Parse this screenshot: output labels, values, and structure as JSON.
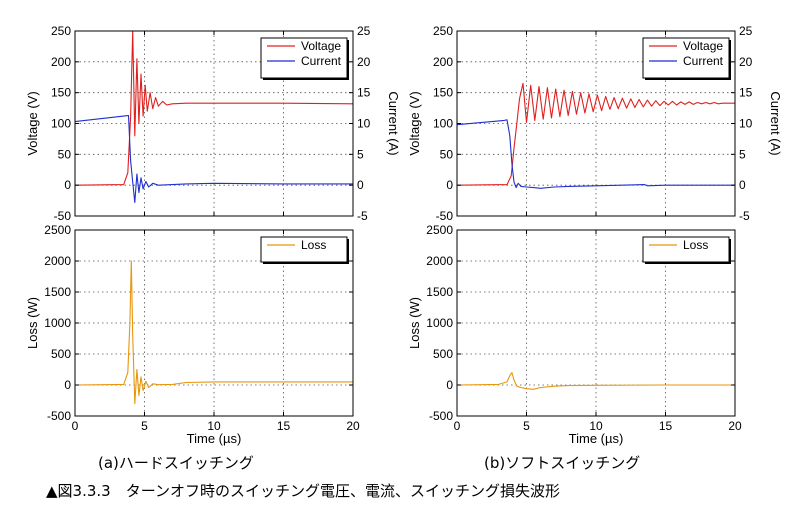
{
  "figure": {
    "caption": "▲図3.3.3　ターンオフ時のスイッチング電圧、電流、スイッチング損失波形",
    "labels": [
      "(a)ハードスイッチング",
      "(b)ソフトスイッチング"
    ]
  },
  "chart_data": [
    {
      "id": "hard-vi",
      "type": "line",
      "xlabel": "",
      "ylabel": "Voltage (V)",
      "ylabel_right": "Current (A)",
      "xlim": [
        0,
        20
      ],
      "ylim": [
        -50,
        250
      ],
      "ylim_right": [
        -5,
        25
      ],
      "yticks": [
        -50,
        0,
        50,
        100,
        150,
        200,
        250
      ],
      "yticks_right": [
        -5,
        0,
        5,
        10,
        15,
        20,
        25
      ],
      "grid": true,
      "legend": "top-right",
      "series": [
        {
          "name": "Voltage",
          "color": "#e0201e",
          "axis": "left",
          "x": [
            0,
            3.5,
            3.8,
            4.0,
            4.15,
            4.3,
            4.45,
            4.6,
            4.75,
            4.9,
            5.05,
            5.2,
            5.4,
            5.6,
            5.8,
            6.0,
            6.3,
            6.6,
            7,
            8,
            10,
            15,
            20
          ],
          "y": [
            0,
            1,
            20,
            110,
            250,
            80,
            205,
            100,
            180,
            112,
            162,
            120,
            150,
            124,
            142,
            128,
            136,
            130,
            132,
            133,
            133,
            133,
            132
          ]
        },
        {
          "name": "Current",
          "color": "#1f2fd0",
          "axis": "right",
          "x": [
            0,
            3.5,
            3.85,
            4.0,
            4.15,
            4.3,
            4.45,
            4.6,
            4.75,
            4.9,
            5.1,
            5.3,
            5.6,
            6,
            7,
            8,
            10,
            15,
            20
          ],
          "y": [
            10.3,
            11.2,
            11.3,
            4,
            0.5,
            -2.8,
            1.8,
            -1.2,
            1.2,
            -0.6,
            0.6,
            -0.3,
            0.3,
            0,
            0.1,
            0.2,
            0.3,
            0.2,
            0.2
          ]
        }
      ]
    },
    {
      "id": "soft-vi",
      "type": "line",
      "xlabel": "",
      "ylabel": "Voltage (V)",
      "ylabel_right": "Current (A)",
      "xlim": [
        0,
        20
      ],
      "ylim": [
        -50,
        250
      ],
      "ylim_right": [
        -5,
        25
      ],
      "yticks": [
        -50,
        0,
        50,
        100,
        150,
        200,
        250
      ],
      "yticks_right": [
        -5,
        0,
        5,
        10,
        15,
        20,
        25
      ],
      "grid": true,
      "legend": "top-right",
      "series": [
        {
          "name": "Voltage",
          "color": "#e0201e",
          "axis": "left",
          "x": [
            0,
            3.6,
            3.9,
            4.1,
            4.3,
            4.5,
            4.75,
            5.0,
            5.3,
            5.6,
            5.9,
            6.2,
            6.5,
            6.8,
            7.1,
            7.4,
            7.7,
            8.0,
            8.3,
            8.6,
            8.9,
            9.2,
            9.5,
            9.8,
            10.1,
            10.4,
            10.7,
            11.0,
            11.3,
            11.6,
            11.9,
            12.2,
            12.5,
            12.8,
            13.1,
            13.4,
            13.7,
            14.0,
            14.3,
            14.6,
            14.9,
            15.2,
            15.5,
            15.8,
            16.1,
            16.4,
            16.7,
            17.0,
            17.3,
            17.6,
            17.9,
            18.2,
            18.5,
            18.8,
            19.1,
            19.4,
            19.7,
            20
          ],
          "y": [
            0,
            1,
            15,
            60,
            100,
            140,
            165,
            102,
            162,
            105,
            160,
            107,
            158,
            109,
            156,
            111,
            154,
            113,
            152,
            115,
            150,
            117,
            148,
            119,
            146,
            121,
            144,
            123,
            142,
            124,
            141,
            125,
            140,
            126,
            139,
            127,
            138,
            128,
            137,
            129,
            136,
            130,
            136,
            130,
            135,
            131,
            135,
            131,
            134,
            132,
            134,
            132,
            134,
            132,
            133,
            133,
            133,
            133
          ]
        },
        {
          "name": "Current",
          "color": "#1f2fd0",
          "axis": "right",
          "x": [
            0,
            3.4,
            3.6,
            3.8,
            3.95,
            4.1,
            4.25,
            4.4,
            4.6,
            5.0,
            5.5,
            6,
            7,
            8,
            10,
            13.5,
            13.7,
            15,
            20
          ],
          "y": [
            9.8,
            10.5,
            10.6,
            8,
            3.5,
            0.5,
            -0.4,
            0.3,
            -0.2,
            -0.3,
            -0.4,
            -0.5,
            -0.3,
            -0.2,
            -0.1,
            0.1,
            -0.1,
            0,
            0
          ]
        }
      ]
    },
    {
      "id": "hard-loss",
      "type": "line",
      "xlabel": "Time (µs)",
      "ylabel": "Loss (W)",
      "xlim": [
        0,
        20
      ],
      "ylim": [
        -500,
        2500
      ],
      "yticks": [
        -500,
        0,
        500,
        1000,
        1500,
        2000,
        2500
      ],
      "xticks": [
        0,
        5,
        10,
        15,
        20
      ],
      "grid": true,
      "legend": "top-right",
      "series": [
        {
          "name": "Loss",
          "color": "#e8960a",
          "x": [
            0,
            3.5,
            3.8,
            3.95,
            4.05,
            4.15,
            4.3,
            4.45,
            4.6,
            4.75,
            4.9,
            5.1,
            5.3,
            5.6,
            6,
            6.5,
            7,
            8,
            10,
            15,
            20
          ],
          "y": [
            0,
            10,
            200,
            1000,
            2000,
            800,
            -300,
            250,
            -170,
            130,
            -90,
            60,
            -40,
            20,
            5,
            8,
            10,
            40,
            50,
            50,
            50
          ]
        }
      ]
    },
    {
      "id": "soft-loss",
      "type": "line",
      "xlabel": "Time (µs)",
      "ylabel": "Loss (W)",
      "xlim": [
        0,
        20
      ],
      "ylim": [
        -500,
        2500
      ],
      "yticks": [
        -500,
        0,
        500,
        1000,
        1500,
        2000,
        2500
      ],
      "xticks": [
        0,
        5,
        10,
        15,
        20
      ],
      "grid": true,
      "legend": "top-right",
      "series": [
        {
          "name": "Loss",
          "color": "#e8960a",
          "x": [
            0,
            3.0,
            3.6,
            3.8,
            3.95,
            4.1,
            4.3,
            4.6,
            5.0,
            5.5,
            6.0,
            7,
            8,
            10,
            15,
            20
          ],
          "y": [
            0,
            10,
            50,
            150,
            200,
            80,
            -20,
            -40,
            -60,
            -70,
            -40,
            -20,
            -10,
            -5,
            0,
            0
          ]
        }
      ]
    }
  ]
}
